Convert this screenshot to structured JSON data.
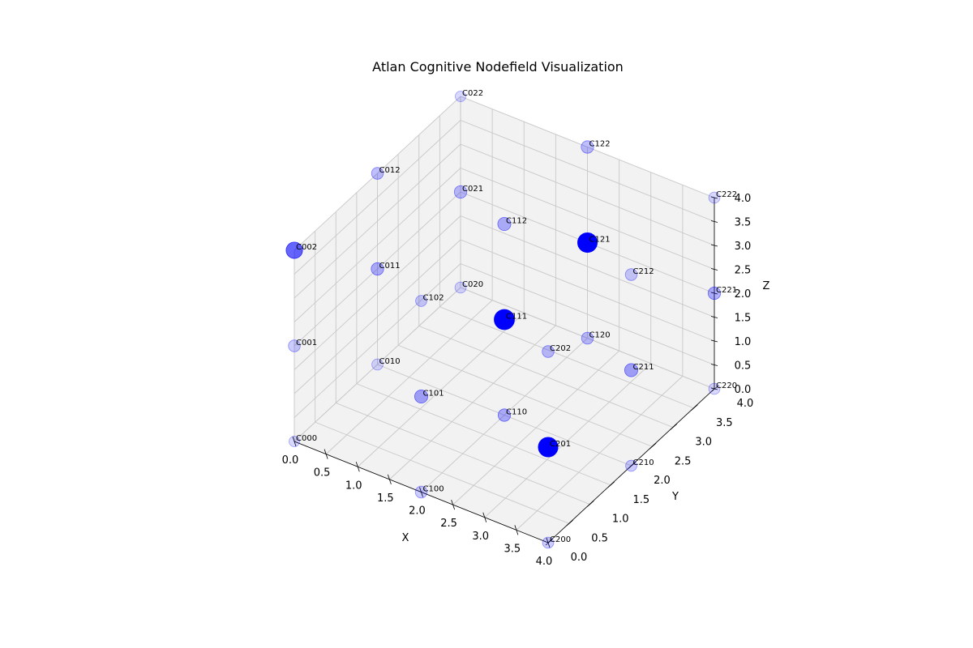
{
  "chart_data": {
    "type": "scatter",
    "projection": "3d",
    "title": "Atlan Cognitive Nodefield Visualization",
    "xlabel": "X",
    "ylabel": "Y",
    "zlabel": "Z",
    "xlim": [
      0,
      4
    ],
    "ylim": [
      0,
      4
    ],
    "zlim": [
      0,
      4
    ],
    "xticks": [
      "0.0",
      "0.5",
      "1.0",
      "1.5",
      "2.0",
      "2.5",
      "3.0",
      "3.5",
      "4.0"
    ],
    "yticks": [
      "0.0",
      "0.5",
      "1.0",
      "1.5",
      "2.0",
      "2.5",
      "3.0",
      "3.5",
      "4.0"
    ],
    "zticks": [
      "0.0",
      "0.5",
      "1.0",
      "1.5",
      "2.0",
      "2.5",
      "3.0",
      "3.5",
      "4.0"
    ],
    "grid": true,
    "marker_color": "#0000ff",
    "pane_color": "#f2f2f2",
    "points": [
      {
        "label": "C000",
        "x": 0,
        "y": 0,
        "z": 0,
        "size": 0.25,
        "alpha": 0.15
      },
      {
        "label": "C001",
        "x": 0,
        "y": 0,
        "z": 2,
        "size": 0.35,
        "alpha": 0.2
      },
      {
        "label": "C002",
        "x": 0,
        "y": 0,
        "z": 4,
        "size": 0.7,
        "alpha": 0.6
      },
      {
        "label": "C010",
        "x": 0,
        "y": 2,
        "z": 0,
        "size": 0.3,
        "alpha": 0.15
      },
      {
        "label": "C011",
        "x": 0,
        "y": 2,
        "z": 2,
        "size": 0.4,
        "alpha": 0.3
      },
      {
        "label": "C012",
        "x": 0,
        "y": 2,
        "z": 4,
        "size": 0.35,
        "alpha": 0.25
      },
      {
        "label": "C020",
        "x": 0,
        "y": 4,
        "z": 0,
        "size": 0.3,
        "alpha": 0.15
      },
      {
        "label": "C021",
        "x": 0,
        "y": 4,
        "z": 2,
        "size": 0.4,
        "alpha": 0.25
      },
      {
        "label": "C022",
        "x": 0,
        "y": 4,
        "z": 4,
        "size": 0.25,
        "alpha": 0.15
      },
      {
        "label": "C100",
        "x": 2,
        "y": 0,
        "z": 0,
        "size": 0.35,
        "alpha": 0.2
      },
      {
        "label": "C101",
        "x": 2,
        "y": 0,
        "z": 2,
        "size": 0.45,
        "alpha": 0.35
      },
      {
        "label": "C102",
        "x": 2,
        "y": 0,
        "z": 4,
        "size": 0.3,
        "alpha": 0.2
      },
      {
        "label": "C110",
        "x": 2,
        "y": 2,
        "z": 0,
        "size": 0.4,
        "alpha": 0.3
      },
      {
        "label": "C111",
        "x": 2,
        "y": 2,
        "z": 2,
        "size": 1.0,
        "alpha": 1.0
      },
      {
        "label": "C112",
        "x": 2,
        "y": 2,
        "z": 4,
        "size": 0.45,
        "alpha": 0.3
      },
      {
        "label": "C120",
        "x": 2,
        "y": 4,
        "z": 0,
        "size": 0.35,
        "alpha": 0.25
      },
      {
        "label": "C121",
        "x": 2,
        "y": 4,
        "z": 2,
        "size": 0.95,
        "alpha": 1.0
      },
      {
        "label": "C122",
        "x": 2,
        "y": 4,
        "z": 4,
        "size": 0.4,
        "alpha": 0.25
      },
      {
        "label": "C200",
        "x": 4,
        "y": 0,
        "z": 0,
        "size": 0.3,
        "alpha": 0.2
      },
      {
        "label": "C201",
        "x": 4,
        "y": 0,
        "z": 2,
        "size": 0.95,
        "alpha": 1.0
      },
      {
        "label": "C202",
        "x": 4,
        "y": 0,
        "z": 4,
        "size": 0.35,
        "alpha": 0.25
      },
      {
        "label": "C210",
        "x": 4,
        "y": 2,
        "z": 0,
        "size": 0.3,
        "alpha": 0.2
      },
      {
        "label": "C211",
        "x": 4,
        "y": 2,
        "z": 2,
        "size": 0.45,
        "alpha": 0.35
      },
      {
        "label": "C212",
        "x": 4,
        "y": 2,
        "z": 4,
        "size": 0.35,
        "alpha": 0.2
      },
      {
        "label": "C220",
        "x": 4,
        "y": 4,
        "z": 0,
        "size": 0.3,
        "alpha": 0.15
      },
      {
        "label": "C221",
        "x": 4,
        "y": 4,
        "z": 2,
        "size": 0.4,
        "alpha": 0.3
      },
      {
        "label": "C222",
        "x": 4,
        "y": 4,
        "z": 4,
        "size": 0.3,
        "alpha": 0.15
      }
    ]
  }
}
